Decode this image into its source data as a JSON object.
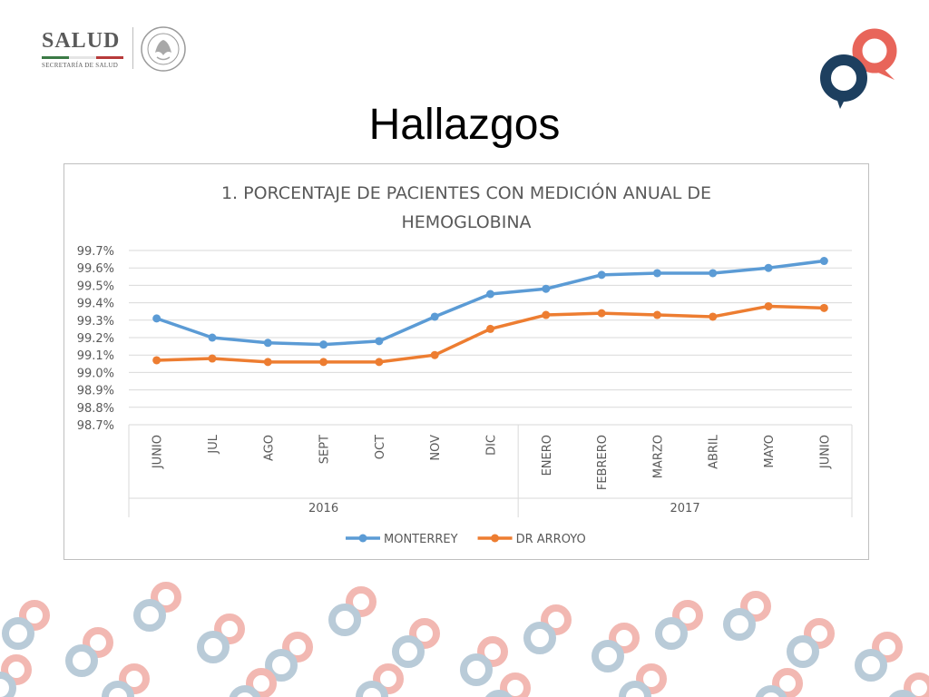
{
  "header": {
    "org_name": "SALUD",
    "org_subtitle": "SECRETARÍA DE SALUD",
    "seal_text": "ESTADOS UNIDOS MEXICANOS"
  },
  "slide": {
    "title": "Hallazgos"
  },
  "colors": {
    "monterrey": "#5b9bd5",
    "dr_arroyo": "#ed7d31",
    "brand_navy": "#1d3f5f",
    "brand_coral": "#e8655a"
  },
  "chart_data": {
    "type": "line",
    "title": "1.  PORCENTAJE DE PACIENTES CON MEDICIÓN ANUAL DE HEMOGLOBINA",
    "title_lines": [
      "1.  PORCENTAJE DE PACIENTES CON MEDICIÓN ANUAL DE",
      "HEMOGLOBINA"
    ],
    "categories": [
      "JUNIO",
      "JUL",
      "AGO",
      "SEPT",
      "OCT",
      "NOV",
      "DIC",
      "ENERO",
      "FEBRERO",
      "MARZO",
      "ABRIL",
      "MAYO",
      "JUNIO"
    ],
    "groups": [
      {
        "label": "2016",
        "count": 7
      },
      {
        "label": "2017",
        "count": 6
      }
    ],
    "series": [
      {
        "name": "MONTERREY",
        "color": "#5b9bd5",
        "values": [
          99.31,
          99.2,
          99.17,
          99.16,
          99.18,
          99.32,
          99.45,
          99.48,
          99.56,
          99.57,
          99.57,
          99.6,
          99.64
        ]
      },
      {
        "name": "DR ARROYO",
        "color": "#ed7d31",
        "values": [
          99.07,
          99.08,
          99.06,
          99.06,
          99.06,
          99.1,
          99.25,
          99.33,
          99.34,
          99.33,
          99.32,
          99.38,
          99.37
        ]
      }
    ],
    "ylim": [
      98.7,
      99.7
    ],
    "yticks": [
      "99.7%",
      "99.6%",
      "99.5%",
      "99.4%",
      "99.3%",
      "99.2%",
      "99.1%",
      "99.0%",
      "98.9%",
      "98.8%",
      "98.7%"
    ],
    "ytick_values": [
      99.7,
      99.6,
      99.5,
      99.4,
      99.3,
      99.2,
      99.1,
      99.0,
      98.9,
      98.8,
      98.7
    ],
    "grid": true,
    "legend": "bottom",
    "xlabel": "",
    "ylabel": ""
  }
}
